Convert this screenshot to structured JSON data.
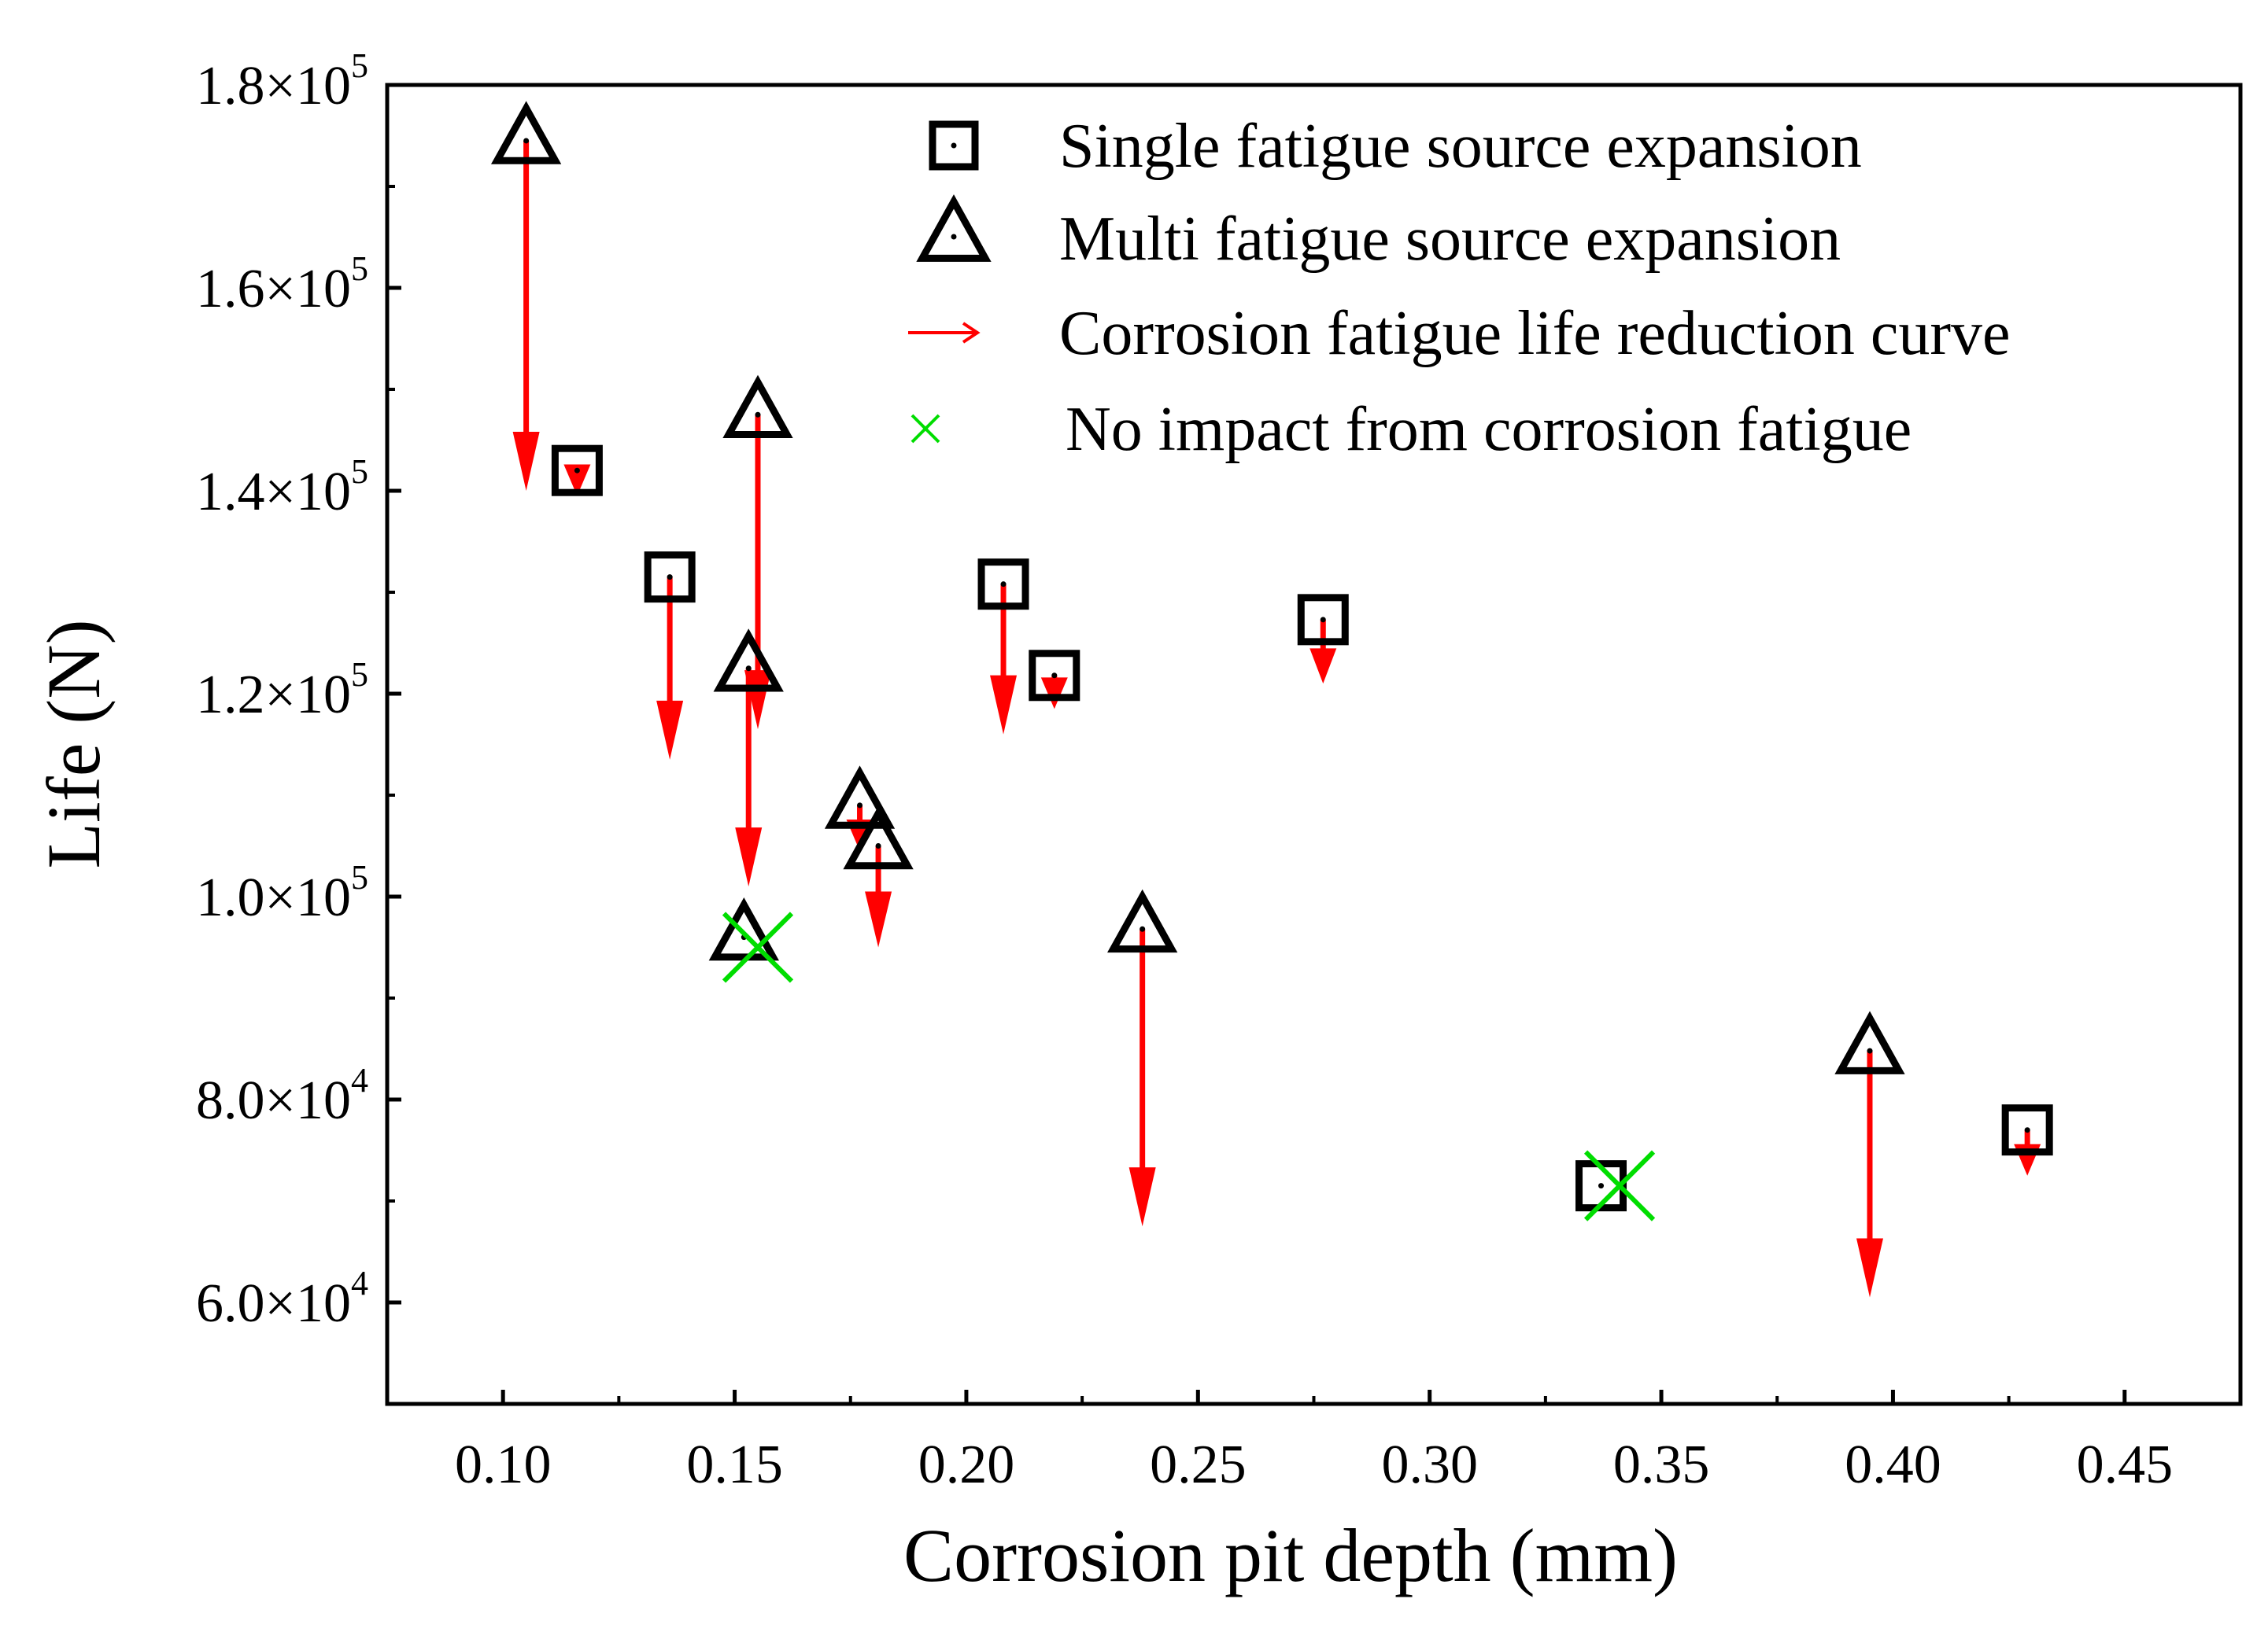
{
  "chart_data": {
    "type": "scatter",
    "xlabel": "Corrosion pit depth (mm)",
    "ylabel": "Life (N)",
    "xlim": [
      0.075,
      0.475
    ],
    "ylim": [
      50000,
      180000
    ],
    "x_ticks": [
      {
        "value": 0.1,
        "label": "0.10"
      },
      {
        "value": 0.15,
        "label": "0.15"
      },
      {
        "value": 0.2,
        "label": "0.20"
      },
      {
        "value": 0.25,
        "label": "0.25"
      },
      {
        "value": 0.3,
        "label": "0.30"
      },
      {
        "value": 0.35,
        "label": "0.35"
      },
      {
        "value": 0.4,
        "label": "0.40"
      },
      {
        "value": 0.45,
        "label": "0.45"
      }
    ],
    "x_minor_ticks": [
      0.125,
      0.175,
      0.225,
      0.275,
      0.325,
      0.375,
      0.425
    ],
    "y_ticks": [
      {
        "value": 60000,
        "mant": "6.0",
        "times": "×10",
        "exp": "4"
      },
      {
        "value": 80000,
        "mant": "8.0",
        "times": "×10",
        "exp": "4"
      },
      {
        "value": 100000,
        "mant": "1.0",
        "times": "×10",
        "exp": "5"
      },
      {
        "value": 120000,
        "mant": "1.2",
        "times": "×10",
        "exp": "5"
      },
      {
        "value": 140000,
        "mant": "1.4",
        "times": "×10",
        "exp": "5"
      },
      {
        "value": 160000,
        "mant": "1.6",
        "times": "×10",
        "exp": "5"
      },
      {
        "value": 180000,
        "mant": "1.8",
        "times": "×10",
        "exp": "5"
      }
    ],
    "y_minor_ticks": [
      70000,
      90000,
      110000,
      130000,
      150000,
      170000
    ],
    "legend_position": "top-right",
    "series": [
      {
        "name": "Single fatigue source expansion",
        "marker": "square",
        "color": "#000000",
        "points": [
          {
            "x": 0.116,
            "y": 142000
          },
          {
            "x": 0.136,
            "y": 131500
          },
          {
            "x": 0.208,
            "y": 130800
          },
          {
            "x": 0.219,
            "y": 121800
          },
          {
            "x": 0.277,
            "y": 127300
          },
          {
            "x": 0.337,
            "y": 71500
          },
          {
            "x": 0.429,
            "y": 77000
          }
        ]
      },
      {
        "name": "Multi fatigue source expansion",
        "marker": "triangle",
        "color": "#000000",
        "points": [
          {
            "x": 0.105,
            "y": 174500
          },
          {
            "x": 0.155,
            "y": 147500
          },
          {
            "x": 0.153,
            "y": 122500
          },
          {
            "x": 0.177,
            "y": 109000
          },
          {
            "x": 0.181,
            "y": 105000
          },
          {
            "x": 0.152,
            "y": 96000
          },
          {
            "x": 0.238,
            "y": 96800
          },
          {
            "x": 0.395,
            "y": 84800
          }
        ]
      },
      {
        "name": "Corrosion fatigue life reduction curve",
        "marker": "arrow",
        "color": "#ff0000",
        "arrows": [
          {
            "x": 0.105,
            "from": 174500,
            "to": 140000
          },
          {
            "x": 0.116,
            "from": 142000,
            "to": 139500
          },
          {
            "x": 0.136,
            "from": 131500,
            "to": 113500
          },
          {
            "x": 0.155,
            "from": 147500,
            "to": 116500
          },
          {
            "x": 0.153,
            "from": 122500,
            "to": 101000
          },
          {
            "x": 0.177,
            "from": 109000,
            "to": 104500
          },
          {
            "x": 0.181,
            "from": 105000,
            "to": 95000
          },
          {
            "x": 0.208,
            "from": 130800,
            "to": 116000
          },
          {
            "x": 0.219,
            "from": 121800,
            "to": 118500
          },
          {
            "x": 0.238,
            "from": 96800,
            "to": 67500
          },
          {
            "x": 0.277,
            "from": 127300,
            "to": 121000
          },
          {
            "x": 0.395,
            "from": 84800,
            "to": 60500
          },
          {
            "x": 0.429,
            "from": 77000,
            "to": 72500
          }
        ]
      },
      {
        "name": "No impact from corrosion fatigue",
        "marker": "x",
        "color": "#00dd00",
        "points": [
          {
            "x": 0.155,
            "y": 95000
          },
          {
            "x": 0.341,
            "y": 71500
          }
        ]
      }
    ]
  }
}
